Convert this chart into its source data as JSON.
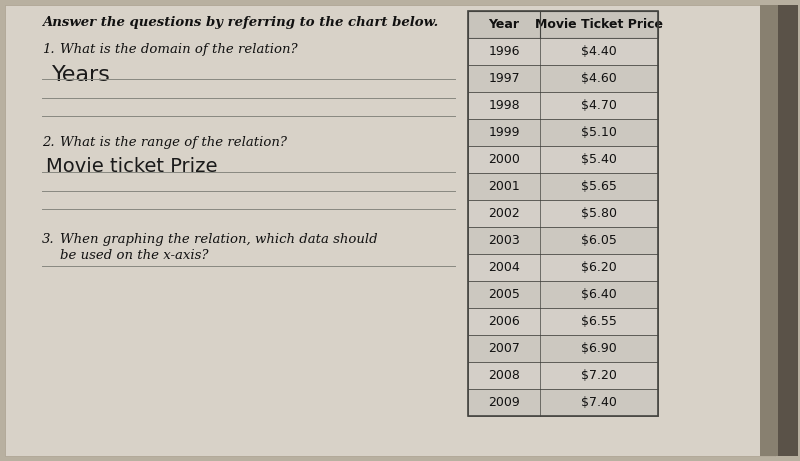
{
  "background_color": "#b8b0a0",
  "paper_color": "#d8d2c8",
  "title_text": "Answer the questions by referring to the chart below.",
  "q1_label": "1.",
  "q1_question": "What is the domain of the relation?",
  "q1_answer": "Years",
  "q2_label": "2.",
  "q2_question": "What is the range of the relation?",
  "q2_answer": "Movie ticket Prize",
  "q3_label": "3.",
  "q3_question1": "When graphing the relation, which data should",
  "q3_question2": "be used on the x-axis?",
  "table_headers": [
    "Year",
    "Movie Ticket Price"
  ],
  "table_data": [
    [
      "1996",
      "$4.40"
    ],
    [
      "1997",
      "$4.60"
    ],
    [
      "1998",
      "$4.70"
    ],
    [
      "1999",
      "$5.10"
    ],
    [
      "2000",
      "$5.40"
    ],
    [
      "2001",
      "$5.65"
    ],
    [
      "2002",
      "$5.80"
    ],
    [
      "2003",
      "$6.05"
    ],
    [
      "2004",
      "$6.20"
    ],
    [
      "2005",
      "$6.40"
    ],
    [
      "2006",
      "$6.55"
    ],
    [
      "2007",
      "$6.90"
    ],
    [
      "2008",
      "$7.20"
    ],
    [
      "2009",
      "$7.40"
    ]
  ],
  "line_color": "#888880",
  "table_border_color": "#444440",
  "table_header_bg": "#c8c4bc",
  "table_row_bg": "#d4cfc8",
  "handwriting_color": "#1a1a1a",
  "text_color": "#111111",
  "title_fontsize": 9.5,
  "body_fontsize": 9.5,
  "answer_fontsize": 14,
  "table_fontsize": 9,
  "right_edge_color": "#888070",
  "right_edge2_color": "#5a5248"
}
